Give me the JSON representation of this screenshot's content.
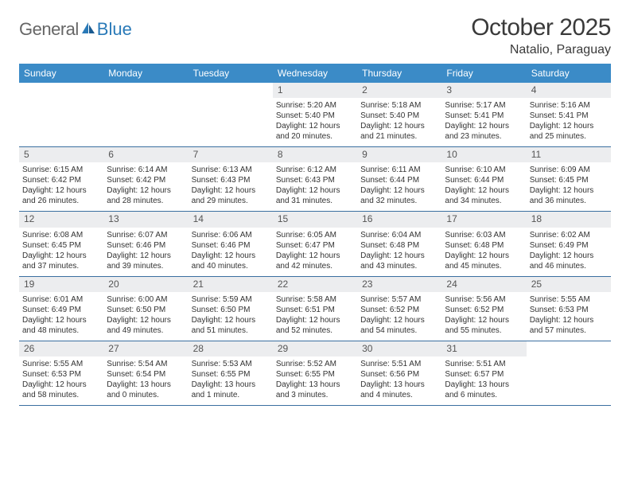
{
  "logo": {
    "text1": "General",
    "text2": "Blue"
  },
  "title": "October 2025",
  "location": "Natalio, Paraguay",
  "colors": {
    "header_bg": "#3b8bc7",
    "row_border": "#3b6fa0",
    "daynum_bg": "#ecedef",
    "text": "#333333",
    "title_text": "#3a3a3a"
  },
  "weekdays": [
    "Sunday",
    "Monday",
    "Tuesday",
    "Wednesday",
    "Thursday",
    "Friday",
    "Saturday"
  ],
  "weeks": [
    [
      {
        "n": "",
        "sunrise": "",
        "sunset": "",
        "daylight": ""
      },
      {
        "n": "",
        "sunrise": "",
        "sunset": "",
        "daylight": ""
      },
      {
        "n": "",
        "sunrise": "",
        "sunset": "",
        "daylight": ""
      },
      {
        "n": "1",
        "sunrise": "5:20 AM",
        "sunset": "5:40 PM",
        "daylight": "12 hours and 20 minutes."
      },
      {
        "n": "2",
        "sunrise": "5:18 AM",
        "sunset": "5:40 PM",
        "daylight": "12 hours and 21 minutes."
      },
      {
        "n": "3",
        "sunrise": "5:17 AM",
        "sunset": "5:41 PM",
        "daylight": "12 hours and 23 minutes."
      },
      {
        "n": "4",
        "sunrise": "5:16 AM",
        "sunset": "5:41 PM",
        "daylight": "12 hours and 25 minutes."
      }
    ],
    [
      {
        "n": "5",
        "sunrise": "6:15 AM",
        "sunset": "6:42 PM",
        "daylight": "12 hours and 26 minutes."
      },
      {
        "n": "6",
        "sunrise": "6:14 AM",
        "sunset": "6:42 PM",
        "daylight": "12 hours and 28 minutes."
      },
      {
        "n": "7",
        "sunrise": "6:13 AM",
        "sunset": "6:43 PM",
        "daylight": "12 hours and 29 minutes."
      },
      {
        "n": "8",
        "sunrise": "6:12 AM",
        "sunset": "6:43 PM",
        "daylight": "12 hours and 31 minutes."
      },
      {
        "n": "9",
        "sunrise": "6:11 AM",
        "sunset": "6:44 PM",
        "daylight": "12 hours and 32 minutes."
      },
      {
        "n": "10",
        "sunrise": "6:10 AM",
        "sunset": "6:44 PM",
        "daylight": "12 hours and 34 minutes."
      },
      {
        "n": "11",
        "sunrise": "6:09 AM",
        "sunset": "6:45 PM",
        "daylight": "12 hours and 36 minutes."
      }
    ],
    [
      {
        "n": "12",
        "sunrise": "6:08 AM",
        "sunset": "6:45 PM",
        "daylight": "12 hours and 37 minutes."
      },
      {
        "n": "13",
        "sunrise": "6:07 AM",
        "sunset": "6:46 PM",
        "daylight": "12 hours and 39 minutes."
      },
      {
        "n": "14",
        "sunrise": "6:06 AM",
        "sunset": "6:46 PM",
        "daylight": "12 hours and 40 minutes."
      },
      {
        "n": "15",
        "sunrise": "6:05 AM",
        "sunset": "6:47 PM",
        "daylight": "12 hours and 42 minutes."
      },
      {
        "n": "16",
        "sunrise": "6:04 AM",
        "sunset": "6:48 PM",
        "daylight": "12 hours and 43 minutes."
      },
      {
        "n": "17",
        "sunrise": "6:03 AM",
        "sunset": "6:48 PM",
        "daylight": "12 hours and 45 minutes."
      },
      {
        "n": "18",
        "sunrise": "6:02 AM",
        "sunset": "6:49 PM",
        "daylight": "12 hours and 46 minutes."
      }
    ],
    [
      {
        "n": "19",
        "sunrise": "6:01 AM",
        "sunset": "6:49 PM",
        "daylight": "12 hours and 48 minutes."
      },
      {
        "n": "20",
        "sunrise": "6:00 AM",
        "sunset": "6:50 PM",
        "daylight": "12 hours and 49 minutes."
      },
      {
        "n": "21",
        "sunrise": "5:59 AM",
        "sunset": "6:50 PM",
        "daylight": "12 hours and 51 minutes."
      },
      {
        "n": "22",
        "sunrise": "5:58 AM",
        "sunset": "6:51 PM",
        "daylight": "12 hours and 52 minutes."
      },
      {
        "n": "23",
        "sunrise": "5:57 AM",
        "sunset": "6:52 PM",
        "daylight": "12 hours and 54 minutes."
      },
      {
        "n": "24",
        "sunrise": "5:56 AM",
        "sunset": "6:52 PM",
        "daylight": "12 hours and 55 minutes."
      },
      {
        "n": "25",
        "sunrise": "5:55 AM",
        "sunset": "6:53 PM",
        "daylight": "12 hours and 57 minutes."
      }
    ],
    [
      {
        "n": "26",
        "sunrise": "5:55 AM",
        "sunset": "6:53 PM",
        "daylight": "12 hours and 58 minutes."
      },
      {
        "n": "27",
        "sunrise": "5:54 AM",
        "sunset": "6:54 PM",
        "daylight": "13 hours and 0 minutes."
      },
      {
        "n": "28",
        "sunrise": "5:53 AM",
        "sunset": "6:55 PM",
        "daylight": "13 hours and 1 minute."
      },
      {
        "n": "29",
        "sunrise": "5:52 AM",
        "sunset": "6:55 PM",
        "daylight": "13 hours and 3 minutes."
      },
      {
        "n": "30",
        "sunrise": "5:51 AM",
        "sunset": "6:56 PM",
        "daylight": "13 hours and 4 minutes."
      },
      {
        "n": "31",
        "sunrise": "5:51 AM",
        "sunset": "6:57 PM",
        "daylight": "13 hours and 6 minutes."
      },
      {
        "n": "",
        "sunrise": "",
        "sunset": "",
        "daylight": ""
      }
    ]
  ],
  "labels": {
    "sunrise": "Sunrise:",
    "sunset": "Sunset:",
    "daylight": "Daylight:"
  }
}
